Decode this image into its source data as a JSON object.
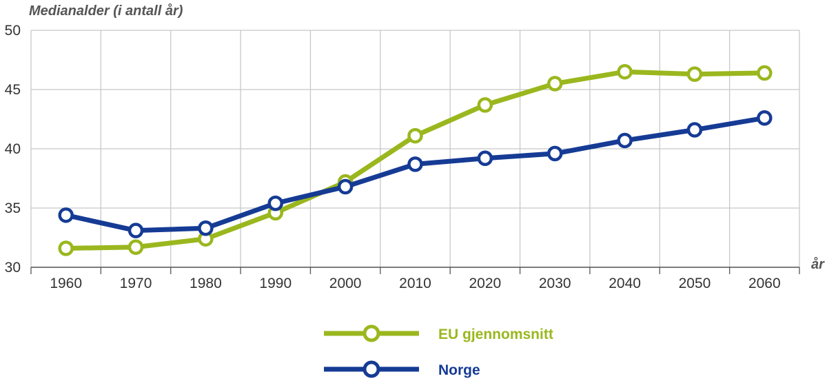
{
  "chart_data": {
    "type": "line",
    "ylabel": "Medianalder (i antall år)",
    "xlabel": "år",
    "x": [
      "1960",
      "1970",
      "1980",
      "1990",
      "2000",
      "2010",
      "2020",
      "2030",
      "2040",
      "2050",
      "2060"
    ],
    "yticks": [
      "30",
      "35",
      "40",
      "45",
      "50"
    ],
    "ylim": [
      30,
      50
    ],
    "grid": true,
    "legend_position": "bottom",
    "series": [
      {
        "name": "EU gjennomsnitt",
        "color": "#9ab71e",
        "values": [
          31.6,
          31.7,
          32.4,
          34.6,
          37.2,
          41.1,
          43.7,
          45.5,
          46.5,
          46.3,
          46.4
        ]
      },
      {
        "name": "Norge",
        "color": "#153b94",
        "values": [
          34.4,
          33.1,
          33.3,
          35.4,
          36.8,
          38.7,
          39.2,
          39.6,
          40.7,
          41.6,
          42.6
        ]
      }
    ]
  }
}
